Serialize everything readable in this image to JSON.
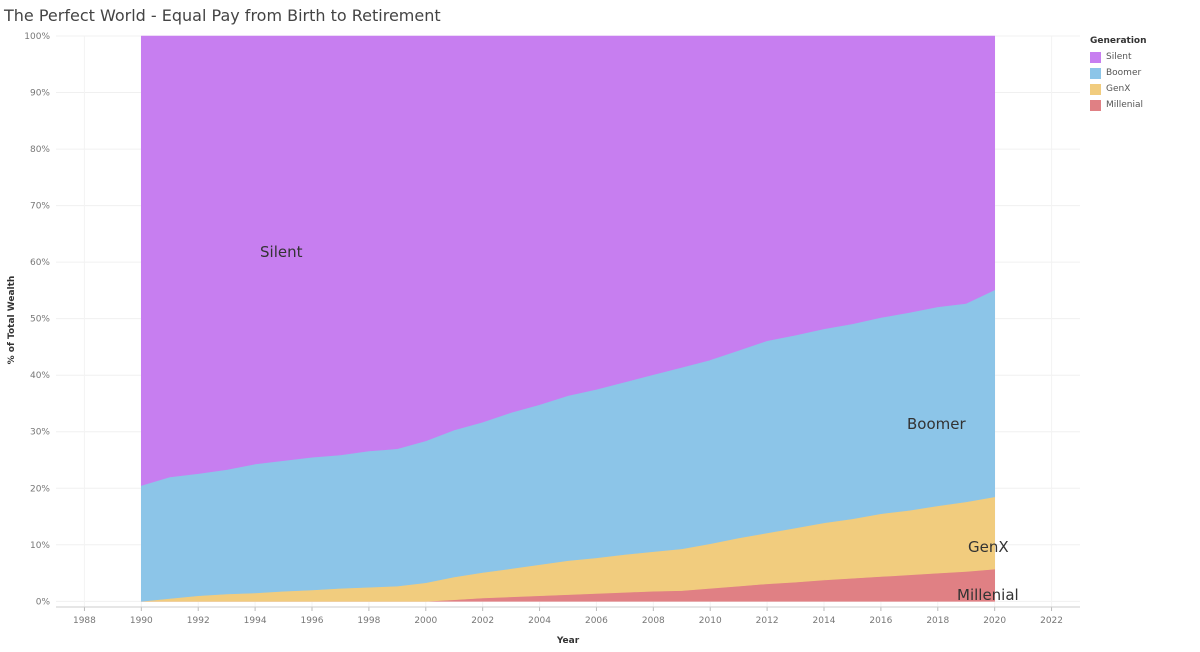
{
  "title": "The Perfect World - Equal Pay from Birth to Retirement",
  "legend": {
    "title": "Generation",
    "items": [
      {
        "label": "Silent",
        "color": "#c77ef0"
      },
      {
        "label": "Boomer",
        "color": "#8cc5e8"
      },
      {
        "label": "GenX",
        "color": "#f1cc7e"
      },
      {
        "label": "Millenial",
        "color": "#e08084"
      }
    ]
  },
  "chart_data": {
    "type": "area",
    "stacked": true,
    "title": "The Perfect World - Equal Pay from Birth to Retirement",
    "xlabel": "Year",
    "ylabel": "% of Total Wealth",
    "xlim": [
      1987,
      2023
    ],
    "ylim": [
      -1,
      100
    ],
    "x_ticks": [
      "1988",
      "1990",
      "1992",
      "1994",
      "1996",
      "1998",
      "2000",
      "2002",
      "2004",
      "2006",
      "2008",
      "2010",
      "2012",
      "2014",
      "2016",
      "2018",
      "2020",
      "2022"
    ],
    "y_ticks": [
      "0%",
      "10%",
      "20%",
      "30%",
      "40%",
      "50%",
      "60%",
      "70%",
      "80%",
      "90%",
      "100%"
    ],
    "grid": true,
    "legend_position": "top-right",
    "x": [
      1990,
      1991,
      1992,
      1993,
      1994,
      1995,
      1996,
      1997,
      1998,
      1999,
      2000,
      2001,
      2002,
      2003,
      2004,
      2005,
      2006,
      2007,
      2008,
      2009,
      2010,
      2011,
      2012,
      2013,
      2014,
      2015,
      2016,
      2017,
      2018,
      2019,
      2020
    ],
    "series": [
      {
        "name": "Millenial",
        "values": [
          0,
          0,
          0,
          0,
          0,
          0,
          0,
          0,
          0,
          0,
          0,
          0.3,
          0.6,
          0.8,
          1.0,
          1.2,
          1.4,
          1.6,
          1.8,
          1.9,
          2.3,
          2.7,
          3.1,
          3.4,
          3.8,
          4.1,
          4.4,
          4.7,
          5.0,
          5.3,
          5.7
        ]
      },
      {
        "name": "GenX",
        "values": [
          0,
          0.5,
          1.0,
          1.3,
          1.5,
          1.8,
          2.0,
          2.3,
          2.5,
          2.7,
          3.3,
          4.0,
          4.5,
          5.0,
          5.5,
          6.0,
          6.3,
          6.7,
          7.0,
          7.4,
          7.9,
          8.5,
          9.0,
          9.6,
          10.1,
          10.5,
          11.1,
          11.4,
          11.9,
          12.3,
          12.8
        ]
      },
      {
        "name": "Boomer",
        "values": [
          20.5,
          21.5,
          21.6,
          22.0,
          22.8,
          23.1,
          23.5,
          23.6,
          24.1,
          24.3,
          25.1,
          26.0,
          26.6,
          27.6,
          28.3,
          29.2,
          29.8,
          30.5,
          31.3,
          32.1,
          32.5,
          33.2,
          34.0,
          34.1,
          34.3,
          34.5,
          34.7,
          35.0,
          35.2,
          35.1,
          36.6
        ]
      },
      {
        "name": "Silent",
        "values": [
          79.5,
          78.0,
          77.4,
          76.7,
          75.7,
          75.1,
          74.5,
          74.1,
          73.4,
          73.0,
          71.6,
          69.7,
          68.3,
          66.6,
          65.2,
          63.6,
          62.5,
          61.2,
          59.9,
          58.6,
          57.3,
          55.6,
          53.9,
          52.9,
          51.8,
          50.9,
          49.8,
          48.9,
          47.9,
          47.3,
          44.9
        ]
      }
    ],
    "area_labels": [
      "Silent",
      "Boomer",
      "GenX",
      "Millenial"
    ]
  }
}
